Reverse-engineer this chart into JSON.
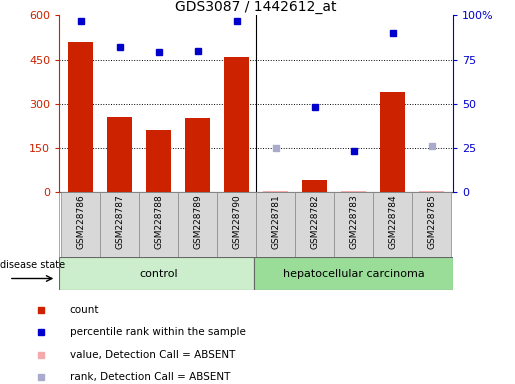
{
  "title": "GDS3087 / 1442612_at",
  "samples": [
    "GSM228786",
    "GSM228787",
    "GSM228788",
    "GSM228789",
    "GSM228790",
    "GSM228781",
    "GSM228782",
    "GSM228783",
    "GSM228784",
    "GSM228785"
  ],
  "bar_values": [
    510,
    255,
    210,
    250,
    460,
    5,
    40,
    5,
    340,
    3
  ],
  "bar_absent": [
    false,
    false,
    false,
    false,
    false,
    true,
    false,
    true,
    false,
    true
  ],
  "rank_values": [
    97,
    82,
    79,
    80,
    97,
    25,
    48,
    23,
    90,
    26
  ],
  "rank_absent": [
    false,
    false,
    false,
    false,
    false,
    true,
    false,
    false,
    false,
    true
  ],
  "bar_color_present": "#cc2200",
  "bar_color_absent": "#f4aaaa",
  "rank_color_present": "#0000cc",
  "rank_color_absent": "#aaaacc",
  "ylim_left": [
    0,
    600
  ],
  "ylim_right": [
    0,
    100
  ],
  "yticks_left": [
    0,
    150,
    300,
    450,
    600
  ],
  "yticks_right": [
    0,
    25,
    50,
    75,
    100
  ],
  "ytick_labels_right": [
    "0",
    "25",
    "50",
    "75",
    "100%"
  ],
  "control_label": "control",
  "disease_label": "hepatocellular carcinoma",
  "disease_state_label": "disease state",
  "legend_items": [
    "count",
    "percentile rank within the sample",
    "value, Detection Call = ABSENT",
    "rank, Detection Call = ABSENT"
  ],
  "group_bg_control": "#cceecc",
  "group_bg_disease": "#99dd99",
  "sample_bg": "#d8d8d8",
  "background_color": "#ffffff",
  "n_control": 5,
  "n_total": 10
}
